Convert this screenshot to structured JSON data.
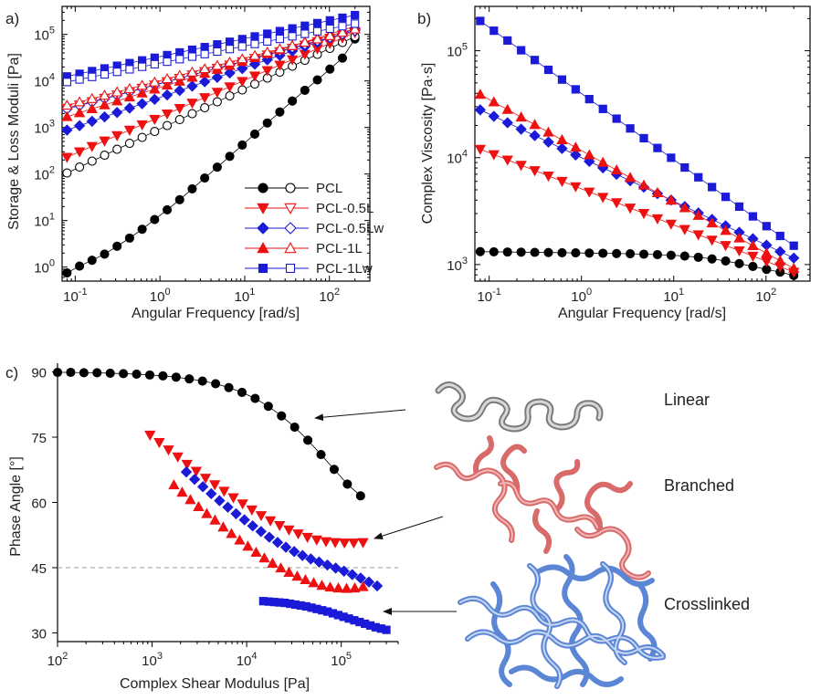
{
  "colors": {
    "PCL": "#000000",
    "PCL-0.5L": "#ee1111",
    "PCL-0.5Lw": "#1a1ad8",
    "PCL-1L": "#ee1111",
    "PCL-1Lw": "#1a1ad8",
    "linear_polymer": "#8a8a8a",
    "branched_polymer": "#e57f7f",
    "crosslinked_polymer": "#6f95dc",
    "reference_line": "#999999"
  },
  "chart_data": [
    {
      "panel": "a)",
      "type": "scatter",
      "xscale": "log",
      "yscale": "log",
      "xlabel": "Angular Frequency [rad/s]",
      "ylabel": "Storage & Loss Moduli [Pa]",
      "xlim": [
        0.07,
        300
      ],
      "ylim": [
        0.5,
        400000
      ],
      "xticks": [
        {
          "v": 0.1,
          "b": "10",
          "e": "-1"
        },
        {
          "v": 1,
          "b": "10",
          "e": "0"
        },
        {
          "v": 10,
          "b": "10",
          "e": "1"
        },
        {
          "v": 100,
          "b": "10",
          "e": "2"
        }
      ],
      "yticks": [
        {
          "v": 1,
          "b": "10",
          "e": "0"
        },
        {
          "v": 10,
          "b": "10",
          "e": "1"
        },
        {
          "v": 100,
          "b": "10",
          "e": "2"
        },
        {
          "v": 1000,
          "b": "10",
          "e": "3"
        },
        {
          "v": 10000,
          "b": "10",
          "e": "4"
        },
        {
          "v": 100000,
          "b": "10",
          "e": "5"
        }
      ],
      "legend_position": "bottom-right",
      "legend": [
        "PCL",
        "PCL-0.5L",
        "PCL-0.5Lw",
        "PCL-1L",
        "PCL-1Lw"
      ],
      "series": [
        {
          "name": "PCL",
          "modulus": "storage",
          "marker": "circle",
          "filled": true,
          "x_start": 0.08,
          "x_end": 200,
          "points": 24,
          "y": [
            0.75,
            1.05,
            1.4,
            1.9,
            2.8,
            4.2,
            6.5,
            10.5,
            17,
            28,
            48,
            82,
            140,
            240,
            420,
            720,
            1250,
            2150,
            3700,
            6300,
            10500,
            18000,
            31000,
            80000
          ]
        },
        {
          "name": "PCL",
          "modulus": "loss",
          "marker": "circle",
          "filled": false,
          "x_start": 0.08,
          "x_end": 200,
          "points": 24,
          "y_start": 105,
          "y_end": 90000
        },
        {
          "name": "PCL-0.5L",
          "modulus": "storage",
          "marker": "triangle-down",
          "filled": true,
          "x_start": 0.08,
          "x_end": 200,
          "points": 24,
          "y_start": 230,
          "y_end": 110000
        },
        {
          "name": "PCL-0.5L",
          "modulus": "loss",
          "marker": "triangle-down",
          "filled": false,
          "x_start": 0.08,
          "x_end": 200,
          "points": 24,
          "y_start": 2600,
          "y_end": 115000
        },
        {
          "name": "PCL-0.5Lw",
          "modulus": "storage",
          "marker": "diamond",
          "filled": true,
          "x_start": 0.08,
          "x_end": 200,
          "points": 24,
          "y_start": 880,
          "y_end": 130000
        },
        {
          "name": "PCL-0.5Lw",
          "modulus": "loss",
          "marker": "diamond",
          "filled": false,
          "x_start": 0.08,
          "x_end": 200,
          "points": 24,
          "y_start": 2500,
          "y_end": 120000
        },
        {
          "name": "PCL-1L",
          "modulus": "storage",
          "marker": "triangle-up",
          "filled": true,
          "x_start": 0.08,
          "x_end": 200,
          "points": 24,
          "y_start": 1700,
          "y_end": 150000
        },
        {
          "name": "PCL-1L",
          "modulus": "loss",
          "marker": "triangle-up",
          "filled": false,
          "x_start": 0.08,
          "x_end": 200,
          "points": 24,
          "y_start": 3000,
          "y_end": 130000
        },
        {
          "name": "PCL-1Lw",
          "modulus": "storage",
          "marker": "square",
          "filled": true,
          "x_start": 0.08,
          "x_end": 200,
          "points": 24,
          "y_start": 12500,
          "y_end": 260000
        },
        {
          "name": "PCL-1Lw",
          "modulus": "loss",
          "marker": "square",
          "filled": false,
          "x_start": 0.08,
          "x_end": 200,
          "points": 24,
          "y_start": 9500,
          "y_end": 170000
        }
      ]
    },
    {
      "panel": "b)",
      "type": "scatter",
      "xscale": "log",
      "yscale": "log",
      "xlabel": "Angular Frequency [rad/s]",
      "ylabel": "Complex Viscosity [Pa·s]",
      "xlim": [
        0.07,
        300
      ],
      "ylim": [
        700,
        260000
      ],
      "xticks": [
        {
          "v": 0.1,
          "b": "10",
          "e": "-1"
        },
        {
          "v": 1,
          "b": "10",
          "e": "0"
        },
        {
          "v": 10,
          "b": "10",
          "e": "1"
        },
        {
          "v": 100,
          "b": "10",
          "e": "2"
        }
      ],
      "yticks": [
        {
          "v": 1000,
          "b": "10",
          "e": "3"
        },
        {
          "v": 10000,
          "b": "10",
          "e": "4"
        },
        {
          "v": 100000,
          "b": "10",
          "e": "5"
        }
      ],
      "series": [
        {
          "name": "PCL",
          "marker": "circle",
          "filled": true,
          "x_start": 0.08,
          "x_end": 200,
          "points": 24,
          "y": [
            1320,
            1315,
            1310,
            1305,
            1300,
            1295,
            1290,
            1285,
            1280,
            1275,
            1268,
            1260,
            1250,
            1238,
            1222,
            1200,
            1170,
            1130,
            1080,
            1020,
            960,
            900,
            850,
            790
          ]
        },
        {
          "name": "PCL-0.5L",
          "marker": "triangle-down",
          "filled": true,
          "x_start": 0.08,
          "x_end": 200,
          "points": 24,
          "y_start": 12000,
          "y_end": 850
        },
        {
          "name": "PCL-0.5Lw",
          "marker": "diamond",
          "filled": true,
          "x_start": 0.08,
          "x_end": 200,
          "points": 24,
          "y_start": 28000,
          "y_end": 1150
        },
        {
          "name": "PCL-1L",
          "marker": "triangle-up",
          "filled": true,
          "x_start": 0.08,
          "x_end": 200,
          "points": 24,
          "y_start": 39000,
          "y_end": 920
        },
        {
          "name": "PCL-1Lw",
          "marker": "square",
          "filled": true,
          "x_start": 0.08,
          "x_end": 200,
          "points": 24,
          "y_start": 190000,
          "y_end": 1500
        }
      ]
    },
    {
      "panel": "c)",
      "type": "scatter",
      "xscale": "log",
      "yscale": "linear",
      "xlabel": "Complex Shear Modulus [Pa]",
      "ylabel": "Phase Angle [°]",
      "xlim": [
        100,
        400000
      ],
      "ylim": [
        28,
        92
      ],
      "xticks": [
        {
          "v": 100,
          "b": "10",
          "e": "2"
        },
        {
          "v": 1000,
          "b": "10",
          "e": "3"
        },
        {
          "v": 10000,
          "b": "10",
          "e": "4"
        },
        {
          "v": 100000,
          "b": "10",
          "e": "5"
        }
      ],
      "yticks": [
        30,
        45,
        60,
        75,
        90
      ],
      "reference_line_y": 45,
      "series": [
        {
          "name": "PCL",
          "marker": "circle",
          "filled": true,
          "points": 24,
          "x_start": 100,
          "x_end": 160000,
          "y": [
            89.9,
            89.9,
            89.8,
            89.8,
            89.7,
            89.6,
            89.5,
            89.3,
            89.1,
            88.8,
            88.4,
            87.9,
            87.3,
            86.4,
            85.3,
            83.9,
            82.1,
            79.9,
            77.3,
            74.3,
            71.0,
            67.6,
            64.2,
            61.5
          ]
        },
        {
          "name": "PCL-0.5L",
          "marker": "triangle-down",
          "filled": true,
          "points": 24,
          "x_start": 950,
          "x_end": 170000,
          "y": [
            75.5,
            73.8,
            72.1,
            70.5,
            68.8,
            67.2,
            65.6,
            64.1,
            62.6,
            61.1,
            59.7,
            58.3,
            57.0,
            55.8,
            54.7,
            53.7,
            52.8,
            52.0,
            51.4,
            51.0,
            50.8,
            50.7,
            50.7,
            50.8
          ]
        },
        {
          "name": "PCL-0.5Lw",
          "marker": "diamond",
          "filled": true,
          "points": 24,
          "x_start": 2300,
          "x_end": 240000,
          "y": [
            67.0,
            65.3,
            63.6,
            62.0,
            60.4,
            58.9,
            57.4,
            56.0,
            54.6,
            53.3,
            52.0,
            50.8,
            49.7,
            48.7,
            47.8,
            47.0,
            46.3,
            45.6,
            44.9,
            44.2,
            43.4,
            42.6,
            41.7,
            40.8
          ]
        },
        {
          "name": "PCL-1L",
          "marker": "triangle-up",
          "filled": true,
          "points": 24,
          "x_start": 1700,
          "x_end": 170000,
          "y": [
            64.0,
            62.3,
            60.6,
            59.0,
            57.4,
            55.9,
            54.3,
            52.8,
            51.3,
            49.9,
            48.5,
            47.2,
            46.0,
            44.9,
            43.9,
            43.0,
            42.2,
            41.5,
            40.9,
            40.5,
            40.3,
            40.2,
            40.3,
            40.6
          ]
        },
        {
          "name": "PCL-1Lw",
          "marker": "square",
          "filled": true,
          "points": 24,
          "x_start": 15000,
          "x_end": 300000,
          "y": [
            37.3,
            37.2,
            37.1,
            37.0,
            36.9,
            36.7,
            36.5,
            36.3,
            36.1,
            35.8,
            35.5,
            35.2,
            34.9,
            34.5,
            34.1,
            33.7,
            33.3,
            32.9,
            32.5,
            32.1,
            31.7,
            31.3,
            31.0,
            30.7
          ]
        }
      ],
      "annotations": [
        "Linear",
        "Branched",
        "Crosslinked"
      ]
    }
  ]
}
